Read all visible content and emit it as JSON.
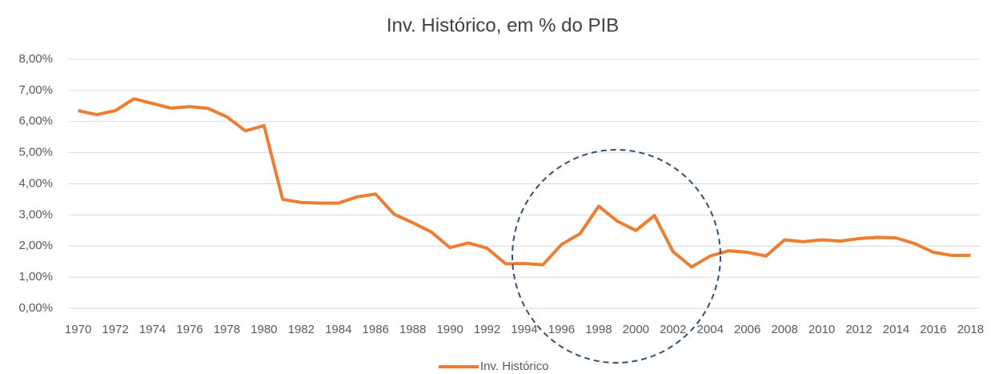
{
  "chart_data": {
    "type": "line",
    "title": "Inv. Histórico, em % do PIB",
    "categories": [
      "1970",
      null,
      "1972",
      null,
      "1974",
      null,
      "1976",
      null,
      "1978",
      null,
      "1980",
      null,
      "1982",
      null,
      "1984",
      null,
      "1986",
      null,
      "1988",
      null,
      "1990",
      null,
      "1992",
      null,
      "1994",
      null,
      "1996",
      null,
      "1998",
      null,
      "2000",
      null,
      "2002",
      null,
      "2004",
      null,
      "2006",
      null,
      "2008",
      null,
      "2010",
      null,
      "2012",
      null,
      "2014",
      null,
      "2016",
      null,
      "2018"
    ],
    "series": [
      {
        "name": "Inv. Histórico",
        "color": "#ed7d31",
        "values": [
          6.35,
          6.22,
          6.35,
          6.73,
          6.58,
          6.43,
          6.48,
          6.42,
          6.15,
          5.7,
          5.87,
          3.5,
          3.4,
          3.38,
          3.38,
          3.58,
          3.67,
          3.02,
          2.75,
          2.45,
          1.95,
          2.1,
          1.93,
          1.43,
          1.44,
          1.4,
          2.05,
          2.4,
          3.28,
          2.8,
          2.5,
          2.98,
          1.82,
          1.33,
          1.68,
          1.85,
          1.8,
          1.68,
          2.2,
          2.14,
          2.2,
          2.16,
          2.24,
          2.28,
          2.26,
          2.08,
          1.8,
          1.7,
          1.7
        ]
      }
    ],
    "ylim": [
      0,
      8
    ],
    "yticks": [
      {
        "value": 0,
        "label": "0,00%"
      },
      {
        "value": 1,
        "label": "1,00%"
      },
      {
        "value": 2,
        "label": "2,00%"
      },
      {
        "value": 3,
        "label": "3,00%"
      },
      {
        "value": 4,
        "label": "4,00%"
      },
      {
        "value": 5,
        "label": "5,00%"
      },
      {
        "value": 6,
        "label": "6,00%"
      },
      {
        "value": 7,
        "label": "7,00%"
      },
      {
        "value": 8,
        "label": "8,00%"
      }
    ],
    "grid": true,
    "legend": "bottom"
  }
}
